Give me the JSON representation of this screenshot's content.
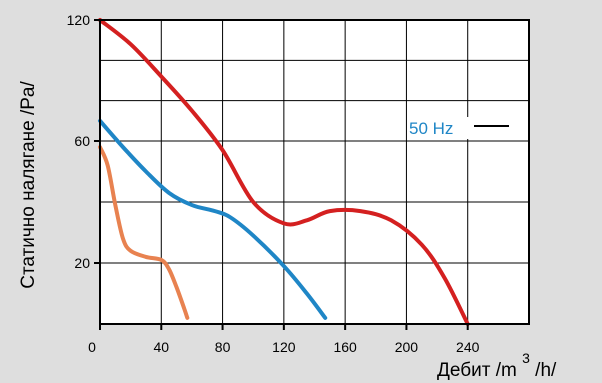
{
  "chart_data": {
    "type": "line",
    "title": "",
    "ylabel": "Статично налягане /Pa/",
    "xlabel_parts": {
      "main": "Дебит /m",
      "sup": "3",
      "tail": "/h/"
    },
    "xlim": [
      0,
      280
    ],
    "ylim": [
      0,
      120
    ],
    "grid": true,
    "x_ticks": [
      "0",
      "40",
      "80",
      "120",
      "160",
      "200",
      "240"
    ],
    "y_ticks": [
      "20",
      "60",
      "120"
    ],
    "legend": {
      "label": "50 Hz",
      "position": "right"
    },
    "series": [
      {
        "color": "#d42020",
        "x": [
          0,
          20,
          40,
          60,
          80,
          100,
          120,
          135,
          150,
          170,
          190,
          210,
          225,
          240
        ],
        "y": [
          120,
          108,
          92,
          75,
          57,
          40,
          33,
          34,
          37,
          37,
          34,
          26,
          15,
          0
        ]
      },
      {
        "color": "#1f86c6",
        "x": [
          0,
          15,
          30,
          45,
          60,
          75,
          85,
          100,
          120,
          135,
          147
        ],
        "y": [
          70,
          58,
          50,
          43,
          39,
          37,
          35,
          29,
          19,
          10,
          2
        ]
      },
      {
        "color": "#e88250",
        "x": [
          0,
          5,
          10,
          15,
          20,
          30,
          40,
          45,
          50,
          55,
          57
        ],
        "y": [
          58,
          52,
          39,
          28,
          24,
          22,
          21,
          18,
          12,
          5,
          2
        ]
      }
    ]
  }
}
